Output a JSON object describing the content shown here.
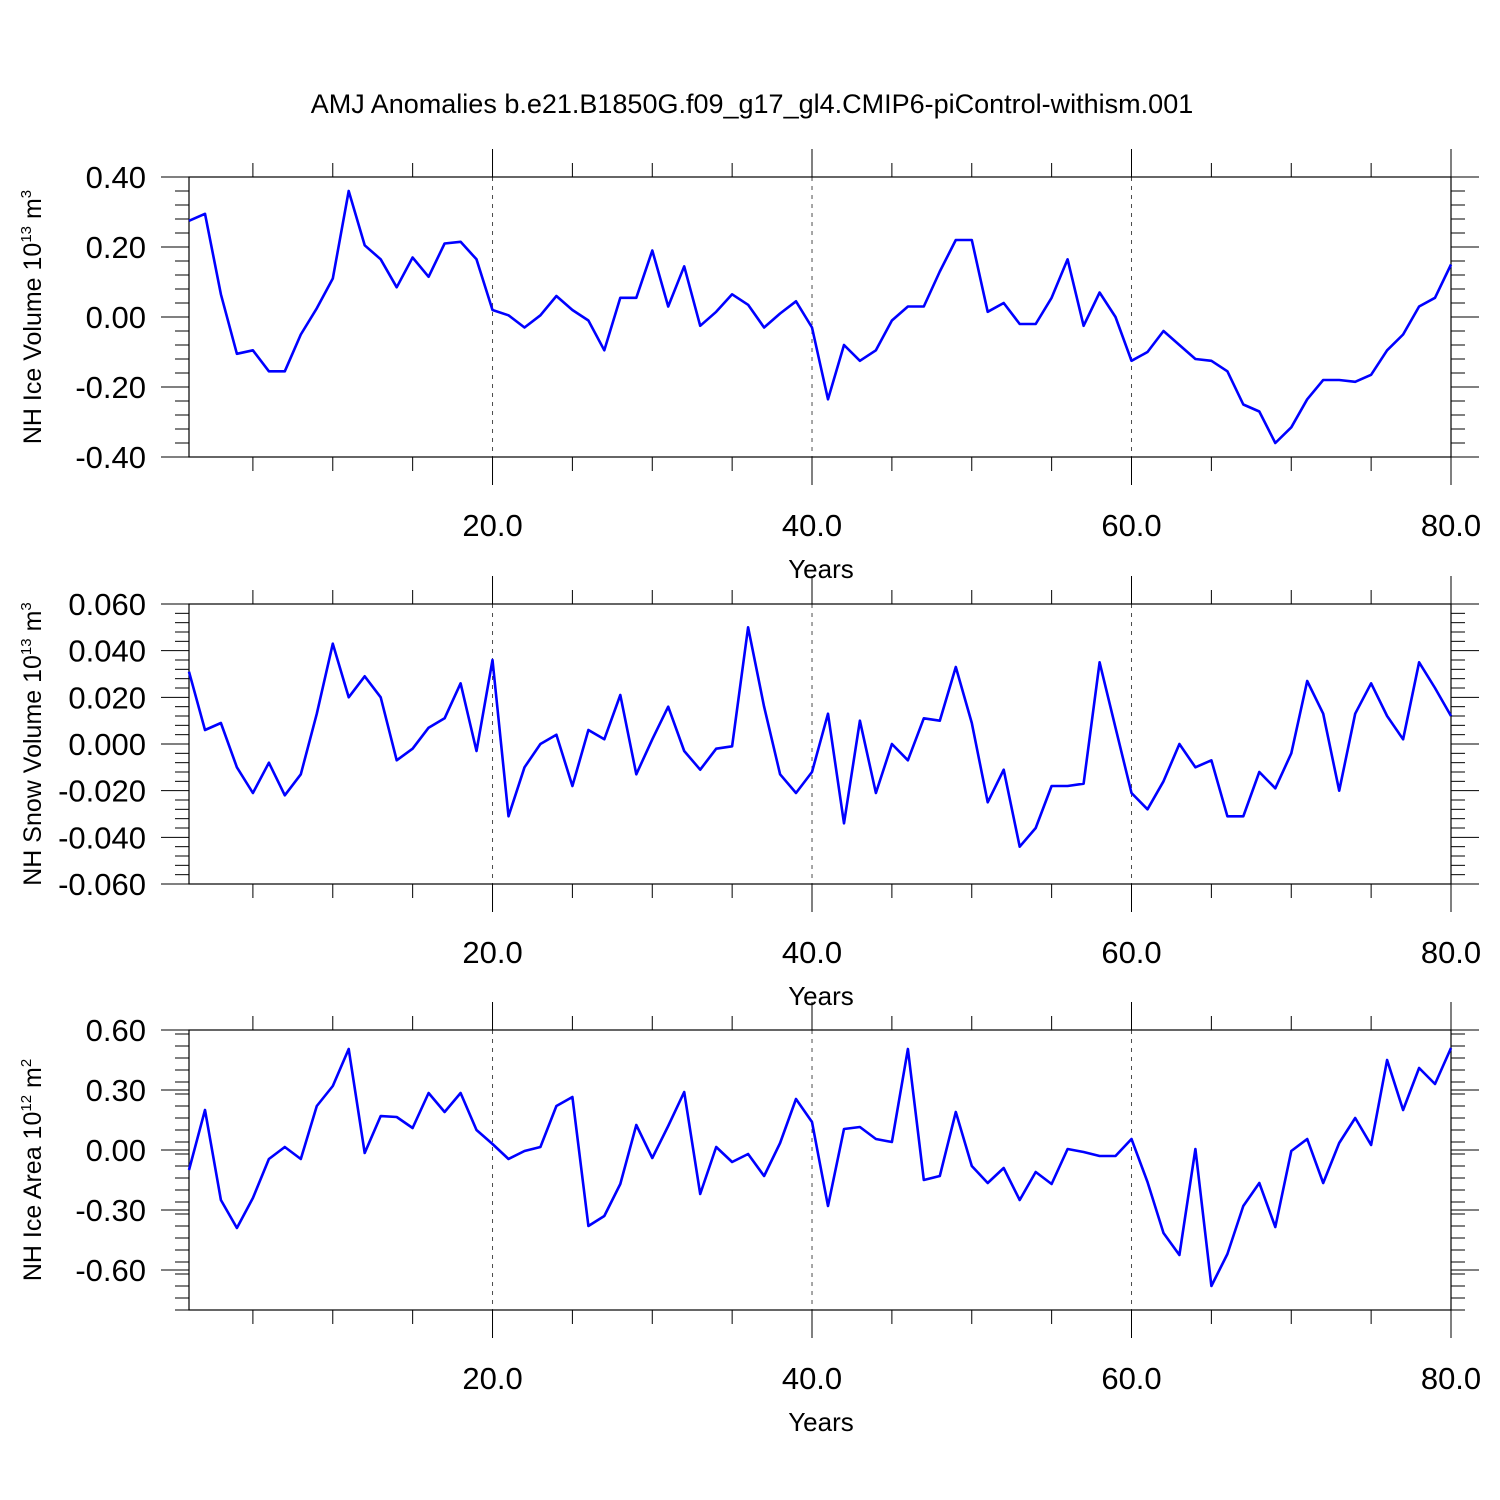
{
  "title": "AMJ Anomalies b.e21.B1850G.f09_g17_gl4.CMIP6-piControl-withism.001",
  "colors": {
    "series": "#0000ff",
    "axis": "#000000",
    "grid": "#000000"
  },
  "chart_data": [
    {
      "type": "line",
      "ylabel": {
        "prefix": "NH Ice Volume 10",
        "sup": "13",
        "unit": " m",
        "unit_sup": "3"
      },
      "xlabel": "Years",
      "xlim": [
        1,
        80
      ],
      "ylim": [
        -0.4,
        0.4
      ],
      "xticks": [
        20,
        40,
        60,
        80
      ],
      "xtick_labels": [
        "20.0",
        "40.0",
        "60.0",
        "80.0"
      ],
      "yticks": [
        -0.4,
        -0.2,
        0.0,
        0.2,
        0.4
      ],
      "ytick_labels": [
        "-0.40",
        "-0.20",
        "0.00",
        "0.20",
        "0.40"
      ],
      "grid": "vertical dashed at major x ticks",
      "series": [
        {
          "x": [
            1,
            2,
            3,
            4,
            5,
            6,
            7,
            8,
            9,
            10,
            11,
            12,
            13,
            14,
            15,
            16,
            17,
            18,
            19,
            20,
            21,
            22,
            23,
            24,
            25,
            26,
            27,
            28,
            29,
            30,
            31,
            32,
            33,
            34,
            35,
            36,
            37,
            38,
            39,
            40,
            41,
            42,
            43,
            44,
            45,
            46,
            47,
            48,
            49,
            50,
            51,
            52,
            53,
            54,
            55,
            56,
            57,
            58,
            59,
            60,
            61,
            62,
            63,
            64,
            65,
            66,
            67,
            68,
            69,
            70,
            71,
            72,
            73,
            74,
            75,
            76,
            77,
            78,
            79,
            80
          ],
          "values": [
            0.275,
            0.295,
            0.065,
            -0.105,
            -0.095,
            -0.155,
            -0.155,
            -0.05,
            0.025,
            0.11,
            0.36,
            0.205,
            0.165,
            0.085,
            0.17,
            0.115,
            0.21,
            0.215,
            0.165,
            0.02,
            0.005,
            -0.03,
            0.005,
            0.06,
            0.02,
            -0.01,
            -0.095,
            0.055,
            0.055,
            0.19,
            0.03,
            0.145,
            -0.025,
            0.015,
            0.065,
            0.035,
            -0.03,
            0.01,
            0.045,
            -0.03,
            -0.235,
            -0.08,
            -0.125,
            -0.095,
            -0.01,
            0.03,
            0.03,
            0.13,
            0.22,
            0.22,
            0.015,
            0.04,
            -0.02,
            -0.02,
            0.055,
            0.165,
            -0.025,
            0.07,
            0.0,
            -0.125,
            -0.1,
            -0.04,
            -0.08,
            -0.12,
            -0.125,
            -0.155,
            -0.25,
            -0.27,
            -0.36,
            -0.315,
            -0.235,
            -0.18,
            -0.18,
            -0.185,
            -0.165,
            -0.095,
            -0.05,
            0.03,
            0.055,
            0.15
          ]
        }
      ]
    },
    {
      "type": "line",
      "ylabel": {
        "prefix": "NH Snow Volume 10",
        "sup": "13",
        "unit": " m",
        "unit_sup": "3"
      },
      "xlabel": "Years",
      "xlim": [
        1,
        80
      ],
      "ylim": [
        -0.06,
        0.06
      ],
      "xticks": [
        20,
        40,
        60,
        80
      ],
      "xtick_labels": [
        "20.0",
        "40.0",
        "60.0",
        "80.0"
      ],
      "yticks": [
        -0.06,
        -0.04,
        -0.02,
        0.0,
        0.02,
        0.04,
        0.06
      ],
      "ytick_labels": [
        "-0.060",
        "-0.040",
        "-0.020",
        "0.000",
        "0.020",
        "0.040",
        "0.060"
      ],
      "grid": "vertical dashed at major x ticks",
      "series": [
        {
          "x": [
            1,
            2,
            3,
            4,
            5,
            6,
            7,
            8,
            9,
            10,
            11,
            12,
            13,
            14,
            15,
            16,
            17,
            18,
            19,
            20,
            21,
            22,
            23,
            24,
            25,
            26,
            27,
            28,
            29,
            30,
            31,
            32,
            33,
            34,
            35,
            36,
            37,
            38,
            39,
            40,
            41,
            42,
            43,
            44,
            45,
            46,
            47,
            48,
            49,
            50,
            51,
            52,
            53,
            54,
            55,
            56,
            57,
            58,
            59,
            60,
            61,
            62,
            63,
            64,
            65,
            66,
            67,
            68,
            69,
            70,
            71,
            72,
            73,
            74,
            75,
            76,
            77,
            78,
            79,
            80
          ],
          "values": [
            0.031,
            0.006,
            0.009,
            -0.01,
            -0.021,
            -0.008,
            -0.022,
            -0.013,
            0.013,
            0.043,
            0.02,
            0.029,
            0.02,
            -0.007,
            -0.002,
            0.007,
            0.011,
            0.026,
            -0.003,
            0.036,
            -0.031,
            -0.01,
            0.0,
            0.004,
            -0.018,
            0.006,
            0.002,
            0.021,
            -0.013,
            0.002,
            0.016,
            -0.003,
            -0.011,
            -0.002,
            -0.001,
            0.05,
            0.016,
            -0.013,
            -0.021,
            -0.012,
            0.013,
            -0.034,
            0.01,
            -0.021,
            0.0,
            -0.007,
            0.011,
            0.01,
            0.033,
            0.009,
            -0.025,
            -0.011,
            -0.044,
            -0.036,
            -0.018,
            -0.018,
            -0.017,
            0.035,
            0.007,
            -0.021,
            -0.028,
            -0.016,
            0.0,
            -0.01,
            -0.007,
            -0.031,
            -0.031,
            -0.012,
            -0.019,
            -0.004,
            0.027,
            0.013,
            -0.02,
            0.013,
            0.026,
            0.012,
            0.002,
            0.035,
            0.024,
            0.012
          ]
        }
      ]
    },
    {
      "type": "line",
      "ylabel": {
        "prefix": "NH Ice Area 10",
        "sup": "12",
        "unit": " m",
        "unit_sup": "2"
      },
      "xlabel": "Years",
      "xlim": [
        1,
        80
      ],
      "ylim": [
        -0.8,
        0.6
      ],
      "xticks": [
        20,
        40,
        60,
        80
      ],
      "xtick_labels": [
        "20.0",
        "40.0",
        "60.0",
        "80.0"
      ],
      "yticks": [
        -0.6,
        -0.3,
        0.0,
        0.3,
        0.6
      ],
      "ytick_labels": [
        "-0.60",
        "-0.30",
        "0.00",
        "0.30",
        "0.60"
      ],
      "grid": "vertical dashed at major x ticks",
      "series": [
        {
          "x": [
            1,
            2,
            3,
            4,
            5,
            6,
            7,
            8,
            9,
            10,
            11,
            12,
            13,
            14,
            15,
            16,
            17,
            18,
            19,
            20,
            21,
            22,
            23,
            24,
            25,
            26,
            27,
            28,
            29,
            30,
            31,
            32,
            33,
            34,
            35,
            36,
            37,
            38,
            39,
            40,
            41,
            42,
            43,
            44,
            45,
            46,
            47,
            48,
            49,
            50,
            51,
            52,
            53,
            54,
            55,
            56,
            57,
            58,
            59,
            60,
            61,
            62,
            63,
            64,
            65,
            66,
            67,
            68,
            69,
            70,
            71,
            72,
            73,
            74,
            75,
            76,
            77,
            78,
            79,
            80
          ],
          "values": [
            -0.1,
            0.2,
            -0.25,
            -0.39,
            -0.24,
            -0.045,
            0.015,
            -0.045,
            0.22,
            0.32,
            0.505,
            -0.015,
            0.17,
            0.165,
            0.11,
            0.285,
            0.19,
            0.285,
            0.1,
            0.03,
            -0.045,
            -0.005,
            0.015,
            0.22,
            0.265,
            -0.38,
            -0.33,
            -0.17,
            0.125,
            -0.04,
            0.12,
            0.29,
            -0.22,
            0.015,
            -0.06,
            -0.02,
            -0.13,
            0.035,
            0.255,
            0.14,
            -0.28,
            0.105,
            0.115,
            0.055,
            0.04,
            0.505,
            -0.15,
            -0.13,
            0.19,
            -0.08,
            -0.165,
            -0.09,
            -0.25,
            -0.11,
            -0.17,
            0.005,
            -0.01,
            -0.03,
            -0.03,
            0.055,
            -0.16,
            -0.415,
            -0.525,
            0.005,
            -0.68,
            -0.52,
            -0.28,
            -0.165,
            -0.385,
            -0.005,
            0.055,
            -0.165,
            0.035,
            0.16,
            0.025,
            0.45,
            0.2,
            0.41,
            0.33,
            0.51
          ]
        }
      ]
    }
  ]
}
